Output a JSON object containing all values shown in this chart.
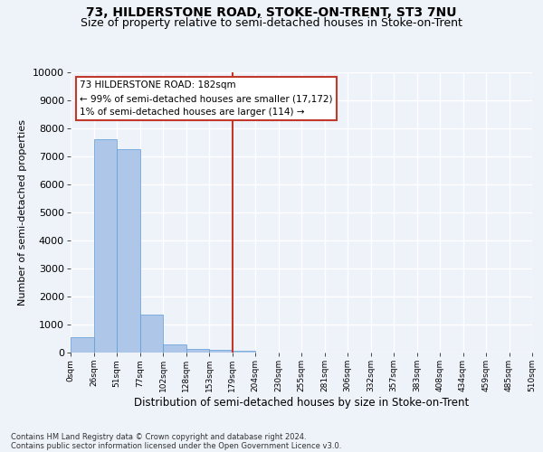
{
  "title": "73, HILDERSTONE ROAD, STOKE-ON-TRENT, ST3 7NU",
  "subtitle": "Size of property relative to semi-detached houses in Stoke-on-Trent",
  "xlabel": "Distribution of semi-detached houses by size in Stoke-on-Trent",
  "ylabel": "Number of semi-detached properties",
  "footnote1": "Contains HM Land Registry data © Crown copyright and database right 2024.",
  "footnote2": "Contains public sector information licensed under the Open Government Licence v3.0.",
  "bar_values": [
    550,
    7600,
    7250,
    1350,
    300,
    130,
    100,
    50,
    0,
    0,
    0,
    0,
    0,
    0,
    0,
    0,
    0,
    0,
    0,
    0
  ],
  "x_labels": [
    "0sqm",
    "26sqm",
    "51sqm",
    "77sqm",
    "102sqm",
    "128sqm",
    "153sqm",
    "179sqm",
    "204sqm",
    "230sqm",
    "255sqm",
    "281sqm",
    "306sqm",
    "332sqm",
    "357sqm",
    "383sqm",
    "408sqm",
    "434sqm",
    "459sqm",
    "485sqm",
    "510sqm"
  ],
  "bar_color": "#aec6e8",
  "bar_edge_color": "#5b9bd5",
  "vline_x": 7,
  "vline_color": "#c0392b",
  "property_label": "73 HILDERSTONE ROAD: 182sqm",
  "smaller_pct": 99,
  "smaller_count": 17172,
  "larger_pct": 1,
  "larger_count": 114,
  "annotation_box_color": "#c0392b",
  "ylim": [
    0,
    10000
  ],
  "yticks": [
    0,
    1000,
    2000,
    3000,
    4000,
    5000,
    6000,
    7000,
    8000,
    9000,
    10000
  ],
  "background_color": "#eef2f9",
  "grid_color": "#ffffff",
  "title_fontsize": 10,
  "subtitle_fontsize": 9
}
